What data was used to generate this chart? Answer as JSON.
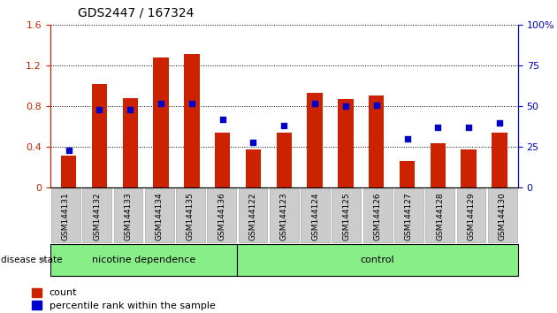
{
  "title": "GDS2447 / 167324",
  "categories": [
    "GSM144131",
    "GSM144132",
    "GSM144133",
    "GSM144134",
    "GSM144135",
    "GSM144136",
    "GSM144122",
    "GSM144123",
    "GSM144124",
    "GSM144125",
    "GSM144126",
    "GSM144127",
    "GSM144128",
    "GSM144129",
    "GSM144130"
  ],
  "bar_values": [
    0.32,
    1.02,
    0.88,
    1.28,
    1.32,
    0.54,
    0.38,
    0.54,
    0.93,
    0.87,
    0.91,
    0.26,
    0.44,
    0.38,
    0.54
  ],
  "dot_values_pct": [
    23,
    48,
    48,
    52,
    52,
    42,
    28,
    38,
    52,
    50,
    51,
    30,
    37,
    37,
    40
  ],
  "bar_color": "#cc2200",
  "dot_color": "#0000cc",
  "ylim_left": [
    0,
    1.6
  ],
  "ylim_right": [
    0,
    100
  ],
  "yticks_left": [
    0,
    0.4,
    0.8,
    1.2,
    1.6
  ],
  "yticks_right": [
    0,
    25,
    50,
    75,
    100
  ],
  "ytick_labels_left": [
    "0",
    "0.4",
    "0.8",
    "1.2",
    "1.6"
  ],
  "ytick_labels_right": [
    "0",
    "25",
    "50",
    "75",
    "100%"
  ],
  "left_axis_color": "#cc2200",
  "right_axis_color": "#0000cc",
  "group1_label": "nicotine dependence",
  "group2_label": "control",
  "group1_count": 6,
  "group2_count": 9,
  "disease_state_label": "disease state",
  "group_box_color": "#88ee88",
  "group_box_edge_color": "#000000",
  "tick_bg_color": "#cccccc",
  "legend_count_label": "count",
  "legend_pct_label": "percentile rank within the sample",
  "bar_width": 0.5,
  "figsize": [
    6.3,
    3.54
  ],
  "dpi": 100
}
